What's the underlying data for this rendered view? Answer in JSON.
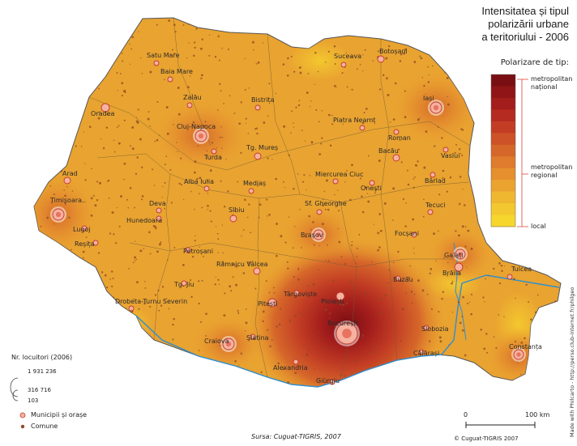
{
  "title_lines": [
    "Intensitatea și tipul",
    "polarizării urbane",
    "a teritoriului - 2006"
  ],
  "legend": {
    "polarization_title": "Polarizare de tip:",
    "class_labels": [
      "metropolitan național",
      "metropolitan regional",
      "local"
    ],
    "ramp_colors": [
      "#7a0f13",
      "#8f1517",
      "#a31d1c",
      "#b52a21",
      "#c23d24",
      "#cd5227",
      "#d6672a",
      "#de7b2c",
      "#e58f2e",
      "#eba32f",
      "#efb630",
      "#f3c72f",
      "#f6d62c"
    ],
    "population_title": "Nr. locuitori (2006)",
    "population_values": [
      "1 931 236",
      "316 716",
      "103"
    ],
    "municipii_label": "Municipii și orașe",
    "comune_label": "Comune"
  },
  "scale": {
    "zero": "0",
    "max": "100 km"
  },
  "source": "Sursa: Cuguat-TIGRIS, 2007",
  "copyright": "© Cuguat-TIGRIS 2007",
  "made_with": "Made with Philcarto - http://perso.club-internet.fr/philgeo",
  "cities": [
    {
      "name": "Satu Mare"
    },
    {
      "name": "Baia Mare"
    },
    {
      "name": "Suceava"
    },
    {
      "name": "Botoșani"
    },
    {
      "name": "Oradea"
    },
    {
      "name": "Zalău"
    },
    {
      "name": "Bistrița"
    },
    {
      "name": "Iași"
    },
    {
      "name": "Piatra Neamț"
    },
    {
      "name": "Roman"
    },
    {
      "name": "Cluj-Napoca"
    },
    {
      "name": "Turda"
    },
    {
      "name": "Tg. Mureș"
    },
    {
      "name": "Bacău"
    },
    {
      "name": "Vaslui"
    },
    {
      "name": "Arad"
    },
    {
      "name": "Alba Iulia"
    },
    {
      "name": "Mediaș"
    },
    {
      "name": "Miercurea Ciuc"
    },
    {
      "name": "Onești"
    },
    {
      "name": "Bârlad"
    },
    {
      "name": "Timișoara"
    },
    {
      "name": "Deva"
    },
    {
      "name": "Sf. Gheorghe"
    },
    {
      "name": "Hunedoara"
    },
    {
      "name": "Sibiu"
    },
    {
      "name": "Tecuci"
    },
    {
      "name": "Lugoj"
    },
    {
      "name": "Brașov"
    },
    {
      "name": "Focșani"
    },
    {
      "name": "Reșița"
    },
    {
      "name": "Petroșani"
    },
    {
      "name": "Galați"
    },
    {
      "name": "Râmnicu Vâlcea"
    },
    {
      "name": "Brăila"
    },
    {
      "name": "Tulcea"
    },
    {
      "name": "Tg. Jiu"
    },
    {
      "name": "Buzău"
    },
    {
      "name": "Târgoviște"
    },
    {
      "name": "Drobeta-Turnu Severin"
    },
    {
      "name": "Pitești"
    },
    {
      "name": "Ploiești"
    },
    {
      "name": "București"
    },
    {
      "name": "Slobozia"
    },
    {
      "name": "Craiova"
    },
    {
      "name": "Slatina"
    },
    {
      "name": "Călărași"
    },
    {
      "name": "Constanța"
    },
    {
      "name": "Alexandria"
    },
    {
      "name": "Giurgiu"
    }
  ]
}
